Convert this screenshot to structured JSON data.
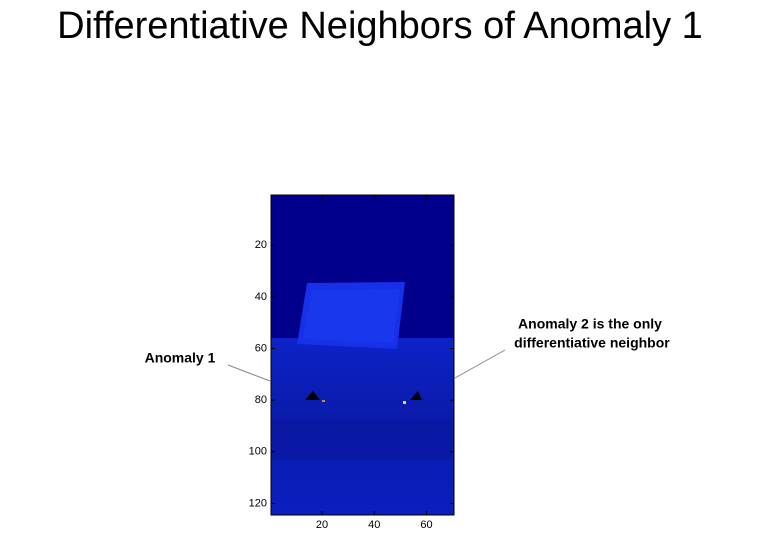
{
  "chart_data": {
    "type": "image",
    "title": "Differentiative Neighbors of Anomaly 1",
    "xlim": [
      0.5,
      70.5
    ],
    "xticks": [
      20,
      40,
      60
    ],
    "ylim": [
      0.5,
      124.5
    ],
    "yticks": [
      20,
      40,
      60,
      80,
      100,
      120
    ],
    "y_reversed": true,
    "annotations": [
      {
        "lines": [
          "Anomaly 1"
        ]
      },
      {
        "lines": [
          "Anomaly 2 is the only",
          " differentiative neighbor"
        ]
      }
    ]
  }
}
